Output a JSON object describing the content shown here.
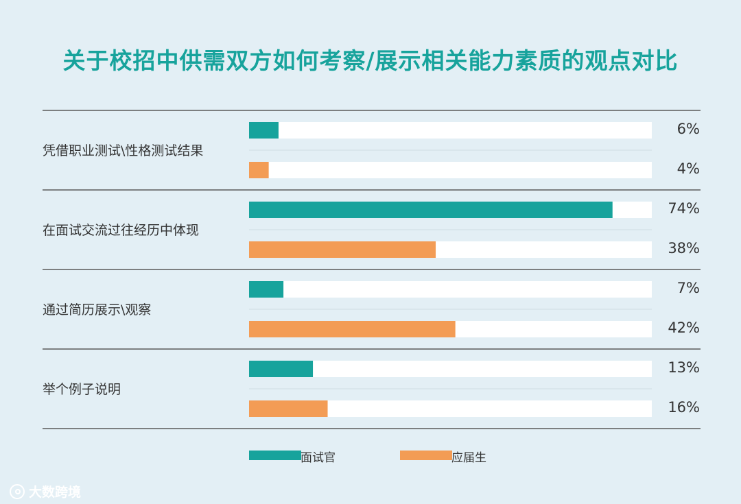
{
  "colors": {
    "teal": "#17a39c",
    "orange": "#f39c55",
    "track": "#ffffff",
    "background": "#e3eff5",
    "rule": "#5a5a5a"
  },
  "watermark": {
    "text": "大数跨境",
    "icon": "logo-icon"
  },
  "chart_data": {
    "type": "bar",
    "orientation": "horizontal",
    "title": "关于校招中供需双方如何考察/展示相关能力素质的观点对比",
    "categories": [
      "凭借职业测试\\性格测试结果",
      "在面试交流过往经历中体现",
      "通过简历展示\\观察",
      "举个例子说明"
    ],
    "series": [
      {
        "name": "面试官",
        "values": [
          6,
          74,
          7,
          13
        ],
        "labels": [
          "6%",
          "74%",
          "7%",
          "13%"
        ],
        "color": "#17a39c"
      },
      {
        "name": "应届生",
        "values": [
          4,
          38,
          42,
          16
        ],
        "labels": [
          "4%",
          "38%",
          "42%",
          "16%"
        ],
        "color": "#f39c55"
      }
    ],
    "xlim": [
      0,
      82
    ],
    "unit": "%",
    "legend_position": "bottom"
  }
}
